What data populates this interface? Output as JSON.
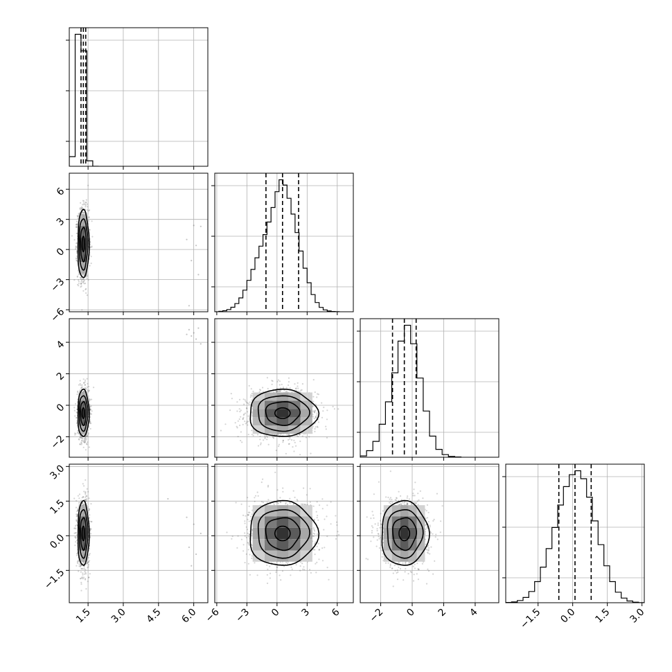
{
  "chart_data": {
    "type": "corner",
    "n_params": 4,
    "grid": true,
    "colors": {
      "hist_line": "#000000",
      "points": "#555555",
      "contour": "#000000",
      "grid": "#b0b0b0"
    },
    "params": [
      {
        "range": [
          0.7,
          6.6
        ],
        "ticks": [
          1.5,
          3.0,
          4.5,
          6.0
        ],
        "tick_labels": [
          "1.5",
          "3.0",
          "4.5",
          "6.0"
        ],
        "mean": 1.3,
        "sd": 0.12,
        "quantiles": [
          1.2,
          1.3,
          1.4
        ]
      },
      {
        "range": [
          -6.2,
          7.6
        ],
        "ticks": [
          -6,
          -3,
          0,
          3,
          6
        ],
        "tick_labels": [
          "−6",
          "−3",
          "0",
          "3",
          "6"
        ],
        "mean": 0.55,
        "sd": 1.7,
        "quantiles": [
          -1.1,
          0.55,
          2.15
        ]
      },
      {
        "range": [
          -3.3,
          5.5
        ],
        "ticks": [
          -2,
          0,
          2,
          4
        ],
        "tick_labels": [
          "−2",
          "0",
          "2",
          "4"
        ],
        "mean": -0.5,
        "sd": 0.75,
        "quantiles": [
          -1.25,
          -0.5,
          0.25
        ]
      },
      {
        "range": [
          -2.9,
          3.1
        ],
        "ticks": [
          -1.5,
          0.0,
          1.5,
          3.0
        ],
        "tick_labels": [
          "−1.5",
          "0.0",
          "1.5",
          "3.0"
        ],
        "mean": 0.1,
        "sd": 0.7,
        "quantiles": [
          -0.6,
          0.1,
          0.8
        ]
      }
    ],
    "histograms": [
      {
        "param": 0,
        "bin_edges": [
          0.7,
          0.95,
          1.2,
          1.45,
          1.7,
          1.95
        ],
        "counts": [
          0.07,
          0.96,
          0.84,
          0.04,
          0.0
        ]
      },
      {
        "param": 1,
        "bin_edges": [
          -6.2,
          -5.8,
          -5.4,
          -5.0,
          -4.6,
          -4.2,
          -3.8,
          -3.4,
          -3.0,
          -2.6,
          -2.2,
          -1.8,
          -1.4,
          -1.0,
          -0.6,
          -0.2,
          0.2,
          0.6,
          1.0,
          1.4,
          1.8,
          2.2,
          2.6,
          3.0,
          3.4,
          3.8,
          4.2,
          4.6,
          5.0,
          5.4,
          5.8,
          6.2
        ],
        "counts": [
          0,
          0.003,
          0.008,
          0.017,
          0.034,
          0.062,
          0.105,
          0.164,
          0.238,
          0.321,
          0.409,
          0.497,
          0.585,
          0.68,
          0.79,
          0.91,
          1.0,
          0.96,
          0.86,
          0.74,
          0.6,
          0.46,
          0.33,
          0.22,
          0.13,
          0.07,
          0.033,
          0.014,
          0.006,
          0.002,
          0.001
        ]
      },
      {
        "param": 2,
        "bin_edges": [
          -3.3,
          -2.9,
          -2.5,
          -2.1,
          -1.7,
          -1.3,
          -0.9,
          -0.5,
          -0.1,
          0.3,
          0.7,
          1.1,
          1.5,
          1.9,
          2.3,
          2.7,
          3.1
        ],
        "counts": [
          0.01,
          0.05,
          0.12,
          0.25,
          0.42,
          0.64,
          0.88,
          1.0,
          0.86,
          0.6,
          0.35,
          0.16,
          0.06,
          0.02,
          0.006,
          0.002
        ]
      },
      {
        "param": 3,
        "bin_edges": [
          -2.9,
          -2.65,
          -2.4,
          -2.15,
          -1.9,
          -1.65,
          -1.4,
          -1.15,
          -0.9,
          -0.65,
          -0.4,
          -0.15,
          0.1,
          0.35,
          0.6,
          0.85,
          1.1,
          1.35,
          1.6,
          1.85,
          2.1,
          2.35,
          2.6,
          2.85,
          3.1
        ],
        "counts": [
          0.002,
          0.006,
          0.017,
          0.04,
          0.085,
          0.16,
          0.27,
          0.41,
          0.57,
          0.74,
          0.88,
          0.97,
          1.0,
          0.94,
          0.8,
          0.62,
          0.44,
          0.28,
          0.16,
          0.08,
          0.035,
          0.013,
          0.004,
          0.001
        ]
      }
    ],
    "pairs": [
      {
        "x_param": 0,
        "y_param": 1,
        "rho": 0.0,
        "contour_levels": [
          1,
          1.5,
          2
        ]
      },
      {
        "x_param": 0,
        "y_param": 2,
        "rho": 0.0,
        "contour_levels": [
          1,
          1.5,
          2
        ]
      },
      {
        "x_param": 1,
        "y_param": 2,
        "rho": 0.0,
        "contour_levels": [
          1,
          1.5,
          2
        ]
      },
      {
        "x_param": 0,
        "y_param": 3,
        "rho": 0.0,
        "contour_levels": [
          1,
          1.5,
          2
        ]
      },
      {
        "x_param": 1,
        "y_param": 3,
        "rho": 0.0,
        "contour_levels": [
          1,
          1.5,
          2
        ]
      },
      {
        "x_param": 2,
        "y_param": 3,
        "rho": 0.0,
        "contour_levels": [
          1,
          1.5,
          2
        ]
      }
    ],
    "outliers": [
      {
        "x_param": 0,
        "y_param": 1,
        "points": [
          [
            6.0,
            2.4
          ],
          [
            5.7,
            1.0
          ],
          [
            6.1,
            0.4
          ],
          [
            5.9,
            -1.1
          ],
          [
            6.2,
            -2.5
          ],
          [
            5.8,
            -5.6
          ],
          [
            6.3,
            2.3
          ]
        ]
      },
      {
        "x_param": 0,
        "y_param": 2,
        "points": [
          [
            5.8,
            4.8
          ],
          [
            6.0,
            4.6
          ],
          [
            6.1,
            4.2
          ],
          [
            5.9,
            4.4
          ],
          [
            6.2,
            4.9
          ],
          [
            6.3,
            3.9
          ],
          [
            5.7,
            4.5
          ]
        ]
      },
      {
        "x_param": 0,
        "y_param": 3,
        "points": [
          [
            4.9,
            1.6
          ],
          [
            5.7,
            0.8
          ],
          [
            6.0,
            0.5
          ],
          [
            5.8,
            -0.5
          ],
          [
            6.1,
            -0.8
          ],
          [
            5.9,
            -1.3
          ],
          [
            6.3,
            0.1
          ]
        ]
      }
    ],
    "title": "",
    "labels": [
      "",
      "",
      "",
      ""
    ]
  }
}
